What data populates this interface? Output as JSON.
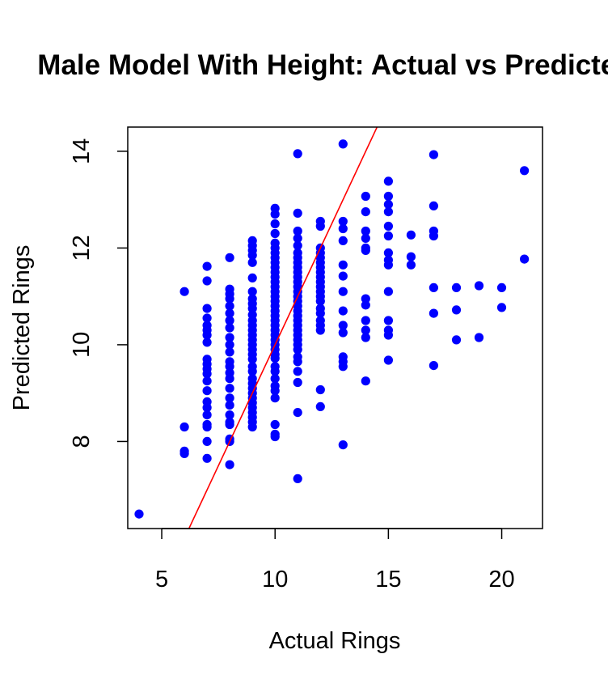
{
  "chart_data": {
    "type": "scatter",
    "title": "Male Model With Height: Actual vs Predicted",
    "xlabel": "Actual Rings",
    "ylabel": "Predicted Rings",
    "xlim": [
      3.5,
      21.8
    ],
    "ylim": [
      6.2,
      14.5
    ],
    "x_ticks": [
      5,
      10,
      15,
      20
    ],
    "y_ticks": [
      8,
      10,
      12,
      14
    ],
    "point_color": "#0000ff",
    "reference_line": {
      "slope": 1,
      "intercept": 0,
      "color": "#ff0000"
    },
    "grid": false,
    "legend": "none",
    "series": [
      {
        "points": [
          [
            4,
            6.5
          ],
          [
            6,
            11.1
          ],
          [
            6,
            8.3
          ],
          [
            6,
            7.8
          ],
          [
            6,
            7.75
          ],
          [
            7,
            11.62
          ],
          [
            7,
            11.32
          ],
          [
            7,
            10.75
          ],
          [
            7,
            10.55
          ],
          [
            7,
            10.4
          ],
          [
            7,
            10.3
          ],
          [
            7,
            10.2
          ],
          [
            7,
            10.05
          ],
          [
            7,
            9.7
          ],
          [
            7,
            9.6
          ],
          [
            7,
            9.5
          ],
          [
            7,
            9.4
          ],
          [
            7,
            9.25
          ],
          [
            7,
            9.05
          ],
          [
            7,
            8.82
          ],
          [
            7,
            8.7
          ],
          [
            7,
            8.55
          ],
          [
            7,
            8.35
          ],
          [
            7,
            8.3
          ],
          [
            7,
            8.0
          ],
          [
            7,
            7.65
          ],
          [
            8,
            11.8
          ],
          [
            8,
            11.15
          ],
          [
            8,
            11.05
          ],
          [
            8,
            10.95
          ],
          [
            8,
            10.8
          ],
          [
            8,
            10.65
          ],
          [
            8,
            10.5
          ],
          [
            8,
            10.35
          ],
          [
            8,
            10.15
          ],
          [
            8,
            10.0
          ],
          [
            8,
            9.85
          ],
          [
            8,
            9.65
          ],
          [
            8,
            9.55
          ],
          [
            8,
            9.42
          ],
          [
            8,
            9.3
          ],
          [
            8,
            9.1
          ],
          [
            8,
            8.9
          ],
          [
            8,
            8.75
          ],
          [
            8,
            8.55
          ],
          [
            8,
            8.4
          ],
          [
            8,
            8.35
          ],
          [
            8,
            8.05
          ],
          [
            8,
            8.0
          ],
          [
            8,
            7.52
          ],
          [
            9,
            12.15
          ],
          [
            9,
            12.05
          ],
          [
            9,
            11.95
          ],
          [
            9,
            11.85
          ],
          [
            9,
            11.7
          ],
          [
            9,
            11.38
          ],
          [
            9,
            11.1
          ],
          [
            9,
            10.95
          ],
          [
            9,
            10.85
          ],
          [
            9,
            10.75
          ],
          [
            9,
            10.62
          ],
          [
            9,
            10.5
          ],
          [
            9,
            10.4
          ],
          [
            9,
            10.3
          ],
          [
            9,
            10.2
          ],
          [
            9,
            10.1
          ],
          [
            9,
            10.0
          ],
          [
            9,
            9.9
          ],
          [
            9,
            9.8
          ],
          [
            9,
            9.7
          ],
          [
            9,
            9.55
          ],
          [
            9,
            9.45
          ],
          [
            9,
            9.3
          ],
          [
            9,
            9.2
          ],
          [
            9,
            9.1
          ],
          [
            9,
            9.0
          ],
          [
            9,
            8.9
          ],
          [
            9,
            8.8
          ],
          [
            9,
            8.7
          ],
          [
            9,
            8.6
          ],
          [
            9,
            8.5
          ],
          [
            9,
            8.4
          ],
          [
            9,
            8.3
          ],
          [
            10,
            12.82
          ],
          [
            10,
            12.7
          ],
          [
            10,
            12.5
          ],
          [
            10,
            12.3
          ],
          [
            10,
            12.1
          ],
          [
            10,
            12.0
          ],
          [
            10,
            11.9
          ],
          [
            10,
            11.8
          ],
          [
            10,
            11.7
          ],
          [
            10,
            11.6
          ],
          [
            10,
            11.5
          ],
          [
            10,
            11.4
          ],
          [
            10,
            11.3
          ],
          [
            10,
            11.2
          ],
          [
            10,
            11.1
          ],
          [
            10,
            11.0
          ],
          [
            10,
            10.9
          ],
          [
            10,
            10.8
          ],
          [
            10,
            10.7
          ],
          [
            10,
            10.6
          ],
          [
            10,
            10.5
          ],
          [
            10,
            10.4
          ],
          [
            10,
            10.3
          ],
          [
            10,
            10.2
          ],
          [
            10,
            10.1
          ],
          [
            10,
            10.0
          ],
          [
            10,
            9.9
          ],
          [
            10,
            9.8
          ],
          [
            10,
            9.72
          ],
          [
            10,
            9.55
          ],
          [
            10,
            9.45
          ],
          [
            10,
            9.3
          ],
          [
            10,
            9.15
          ],
          [
            10,
            9.05
          ],
          [
            10,
            8.9
          ],
          [
            10,
            8.35
          ],
          [
            10,
            8.15
          ],
          [
            10,
            8.1
          ],
          [
            11,
            13.95
          ],
          [
            11,
            12.72
          ],
          [
            11,
            12.35
          ],
          [
            11,
            12.2
          ],
          [
            11,
            12.05
          ],
          [
            11,
            11.9
          ],
          [
            11,
            11.8
          ],
          [
            11,
            11.7
          ],
          [
            11,
            11.6
          ],
          [
            11,
            11.5
          ],
          [
            11,
            11.4
          ],
          [
            11,
            11.3
          ],
          [
            11,
            11.2
          ],
          [
            11,
            11.1
          ],
          [
            11,
            11.0
          ],
          [
            11,
            10.9
          ],
          [
            11,
            10.8
          ],
          [
            11,
            10.7
          ],
          [
            11,
            10.6
          ],
          [
            11,
            10.5
          ],
          [
            11,
            10.4
          ],
          [
            11,
            10.3
          ],
          [
            11,
            10.2
          ],
          [
            11,
            10.1
          ],
          [
            11,
            10.0
          ],
          [
            11,
            9.9
          ],
          [
            11,
            9.75
          ],
          [
            11,
            9.65
          ],
          [
            11,
            9.45
          ],
          [
            11,
            9.22
          ],
          [
            11,
            8.6
          ],
          [
            11,
            7.23
          ],
          [
            12,
            12.55
          ],
          [
            12,
            12.45
          ],
          [
            12,
            12.0
          ],
          [
            12,
            11.9
          ],
          [
            12,
            11.8
          ],
          [
            12,
            11.7
          ],
          [
            12,
            11.6
          ],
          [
            12,
            11.5
          ],
          [
            12,
            11.4
          ],
          [
            12,
            11.3
          ],
          [
            12,
            11.2
          ],
          [
            12,
            11.1
          ],
          [
            12,
            11.0
          ],
          [
            12,
            10.9
          ],
          [
            12,
            10.75
          ],
          [
            12,
            10.65
          ],
          [
            12,
            10.5
          ],
          [
            12,
            10.4
          ],
          [
            12,
            10.3
          ],
          [
            12,
            9.07
          ],
          [
            12,
            8.72
          ],
          [
            13,
            14.15
          ],
          [
            13,
            12.55
          ],
          [
            13,
            12.4
          ],
          [
            13,
            12.15
          ],
          [
            13,
            11.65
          ],
          [
            13,
            11.42
          ],
          [
            13,
            11.1
          ],
          [
            13,
            10.7
          ],
          [
            13,
            10.4
          ],
          [
            13,
            10.25
          ],
          [
            13,
            9.75
          ],
          [
            13,
            9.65
          ],
          [
            13,
            9.55
          ],
          [
            13,
            7.93
          ],
          [
            14,
            13.07
          ],
          [
            14,
            12.75
          ],
          [
            14,
            12.35
          ],
          [
            14,
            12.2
          ],
          [
            14,
            12.0
          ],
          [
            14,
            11.95
          ],
          [
            14,
            10.95
          ],
          [
            14,
            10.82
          ],
          [
            14,
            10.5
          ],
          [
            14,
            10.3
          ],
          [
            14,
            10.15
          ],
          [
            14,
            9.25
          ],
          [
            15,
            13.38
          ],
          [
            15,
            13.07
          ],
          [
            15,
            12.9
          ],
          [
            15,
            12.75
          ],
          [
            15,
            12.45
          ],
          [
            15,
            12.25
          ],
          [
            15,
            11.9
          ],
          [
            15,
            11.75
          ],
          [
            15,
            11.65
          ],
          [
            15,
            11.1
          ],
          [
            15,
            10.5
          ],
          [
            15,
            10.3
          ],
          [
            15,
            10.2
          ],
          [
            15,
            9.68
          ],
          [
            16,
            12.27
          ],
          [
            16,
            11.82
          ],
          [
            16,
            11.65
          ],
          [
            17,
            13.93
          ],
          [
            17,
            12.87
          ],
          [
            17,
            12.35
          ],
          [
            17,
            12.25
          ],
          [
            17,
            11.18
          ],
          [
            17,
            10.65
          ],
          [
            17,
            9.57
          ],
          [
            18,
            11.18
          ],
          [
            18,
            10.72
          ],
          [
            18,
            10.1
          ],
          [
            19,
            11.22
          ],
          [
            19,
            10.15
          ],
          [
            20,
            11.18
          ],
          [
            20,
            10.77
          ],
          [
            21,
            13.6
          ],
          [
            21,
            11.77
          ]
        ]
      }
    ]
  }
}
